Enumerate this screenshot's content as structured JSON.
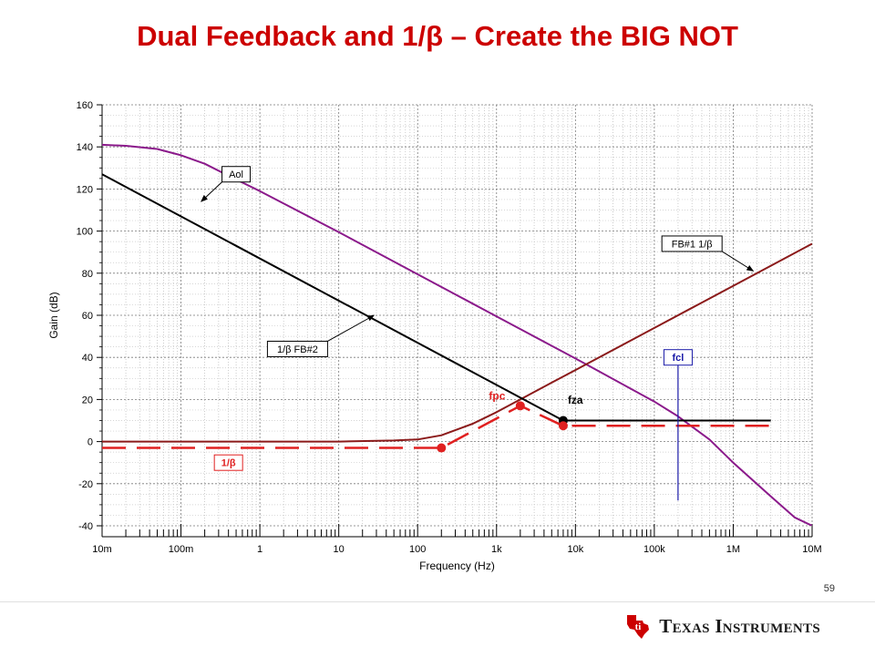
{
  "slide": {
    "title": "Dual Feedback and 1/β – Create the BIG NOT",
    "page_number": "59"
  },
  "footer": {
    "company_name": "Texas Instruments",
    "logo_icon": "texas-state-logo-icon",
    "logo_color": "#cc0000"
  },
  "chart_data": {
    "type": "line",
    "xlabel": "Frequency (Hz)",
    "ylabel": "Gain (dB)",
    "x_scale": "log",
    "xlim": [
      0.01,
      10000000
    ],
    "ylim": [
      -40,
      160
    ],
    "grid": true,
    "x_ticks": [
      {
        "value": 0.01,
        "label": "10m"
      },
      {
        "value": 0.1,
        "label": "100m"
      },
      {
        "value": 1,
        "label": "1"
      },
      {
        "value": 10,
        "label": "10"
      },
      {
        "value": 100,
        "label": "100"
      },
      {
        "value": 1000,
        "label": "1k"
      },
      {
        "value": 10000,
        "label": "10k"
      },
      {
        "value": 100000,
        "label": "100k"
      },
      {
        "value": 1000000,
        "label": "1M"
      },
      {
        "value": 10000000,
        "label": "10M"
      }
    ],
    "y_ticks": [
      {
        "value": -40,
        "label": "-40"
      },
      {
        "value": -20,
        "label": "-20"
      },
      {
        "value": 0,
        "label": "0"
      },
      {
        "value": 20,
        "label": "20"
      },
      {
        "value": 40,
        "label": "40"
      },
      {
        "value": 60,
        "label": "60"
      },
      {
        "value": 80,
        "label": "80"
      },
      {
        "value": 100,
        "label": "100"
      },
      {
        "value": 120,
        "label": "120"
      },
      {
        "value": 140,
        "label": "140"
      },
      {
        "value": 160,
        "label": "160"
      }
    ],
    "series": [
      {
        "name": "Aol",
        "color": "#8b1a8b",
        "style": "solid",
        "points": [
          [
            0.01,
            141
          ],
          [
            0.02,
            140.5
          ],
          [
            0.05,
            139
          ],
          [
            0.1,
            136
          ],
          [
            0.2,
            132
          ],
          [
            0.5,
            124.5
          ],
          [
            1,
            119
          ],
          [
            10,
            99.5
          ],
          [
            100,
            79.5
          ],
          [
            1000,
            59.5
          ],
          [
            10000,
            39.5
          ],
          [
            100000,
            19
          ],
          [
            200000,
            12
          ],
          [
            500000,
            1
          ],
          [
            1000000,
            -10
          ],
          [
            3000000,
            -26
          ],
          [
            6000000,
            -36
          ],
          [
            10000000,
            -40
          ]
        ]
      },
      {
        "name": "FB#1 1/β",
        "color": "#8b1a1a",
        "style": "solid",
        "points": [
          [
            0.01,
            0
          ],
          [
            10,
            0
          ],
          [
            50,
            0.5
          ],
          [
            100,
            1
          ],
          [
            200,
            3
          ],
          [
            500,
            8.5
          ],
          [
            1000,
            14
          ],
          [
            2000,
            20
          ],
          [
            5000,
            28
          ],
          [
            10000,
            34
          ],
          [
            100000,
            54
          ],
          [
            1000000,
            74
          ],
          [
            10000000,
            94
          ]
        ]
      },
      {
        "name": "1/β FB#2",
        "color": "#000000",
        "style": "solid",
        "points": [
          [
            0.01,
            127
          ],
          [
            7000,
            10
          ],
          [
            3000000,
            10
          ]
        ]
      },
      {
        "name": "1/β",
        "color": "#e02020",
        "style": "dashed",
        "points": [
          [
            0.01,
            -3
          ],
          [
            200,
            -3
          ],
          [
            2000,
            17
          ],
          [
            7000,
            7.5
          ],
          [
            3000000,
            7.5
          ]
        ]
      },
      {
        "name": "fcl",
        "color": "#1a1aa8",
        "style": "solid",
        "points": [
          [
            200000,
            40
          ],
          [
            200000,
            -28
          ]
        ]
      }
    ],
    "markers": [
      {
        "label": "fpc",
        "x": 2000,
        "y": 17,
        "color": "#e02020",
        "label_x": 800,
        "label_y": 20,
        "label_color": "#e02020"
      },
      {
        "label": "fza",
        "x": 7000,
        "y": 10,
        "color": "#000000",
        "label_x": 8000,
        "label_y": 18,
        "label_color": "#000000"
      },
      {
        "label": "",
        "x": 200,
        "y": -3,
        "color": "#e02020"
      },
      {
        "label": "",
        "x": 7000,
        "y": 7.5,
        "color": "#e02020"
      }
    ],
    "annotations": [
      {
        "text": "Aol",
        "box_x": 0.5,
        "box_y": 127,
        "target_x": 0.18,
        "target_y": 114,
        "color": "#000000"
      },
      {
        "text": "FB#1 1/β",
        "box_x": 300000,
        "box_y": 94,
        "target_x": 1800000,
        "target_y": 81,
        "color": "#000000"
      },
      {
        "text": "1/β FB#2",
        "box_x": 3,
        "box_y": 44,
        "target_x": 28,
        "target_y": 60,
        "color": "#000000"
      },
      {
        "text": "fcl",
        "box_x": 200000,
        "box_y": 40,
        "target_x": 200000,
        "target_y": 40,
        "color": "#1a1aa8"
      },
      {
        "text": "1/β",
        "box_x": 0.4,
        "box_y": -10,
        "target_x": 0.4,
        "target_y": -10,
        "color": "#e02020"
      }
    ]
  }
}
